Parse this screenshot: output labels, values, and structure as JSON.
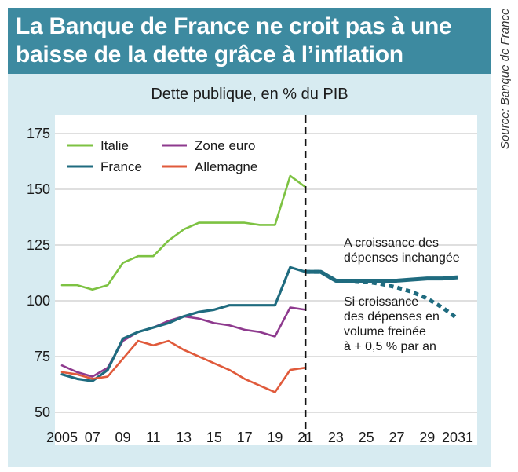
{
  "title_line1": "La Banque de France ne croit pas à une",
  "title_line2": "baisse de la dette grâce à l’inflation",
  "source": "Source: Banque de France",
  "colors": {
    "title_bg": "#3d8aa0",
    "frame_bg": "#d7ebf1",
    "italie": "#7dc242",
    "zone_euro": "#8e3a8e",
    "france": "#1f6b7f",
    "allemagne": "#e05a3b"
  },
  "chart_data": {
    "type": "line",
    "title": "Dette publique, en % du PIB",
    "xlabel": "",
    "ylabel": "",
    "xlim": [
      2005,
      2031
    ],
    "ylim": [
      50,
      175
    ],
    "yticks": [
      50,
      75,
      100,
      125,
      150,
      175
    ],
    "ytick_labels": [
      "50",
      "75",
      "100",
      "125",
      "150",
      "175"
    ],
    "xticks": [
      2005,
      2007,
      2009,
      2011,
      2013,
      2015,
      2017,
      2019,
      2021,
      2023,
      2025,
      2027,
      2029,
      2031
    ],
    "xtick_labels": [
      "2005",
      "07",
      "09",
      "11",
      "13",
      "15",
      "17",
      "19",
      "21",
      "23",
      "25",
      "27",
      "29",
      "2031"
    ],
    "grid": "horizontal",
    "legend": "top-left",
    "forecast_start": 2021,
    "series": [
      {
        "name": "Italie",
        "x": [
          2005,
          2006,
          2007,
          2008,
          2009,
          2010,
          2011,
          2012,
          2013,
          2014,
          2015,
          2016,
          2017,
          2018,
          2019,
          2020,
          2021
        ],
        "y": [
          107,
          107,
          105,
          107,
          117,
          120,
          120,
          127,
          132,
          135,
          135,
          135,
          135,
          134,
          134,
          156,
          151
        ]
      },
      {
        "name": "Zone euro",
        "x": [
          2005,
          2006,
          2007,
          2008,
          2009,
          2010,
          2011,
          2012,
          2013,
          2014,
          2015,
          2016,
          2017,
          2018,
          2019,
          2020,
          2021
        ],
        "y": [
          71,
          68,
          66,
          70,
          82,
          86,
          88,
          91,
          93,
          92,
          90,
          89,
          87,
          86,
          84,
          97,
          96
        ]
      },
      {
        "name": "France",
        "x": [
          2005,
          2006,
          2007,
          2008,
          2009,
          2010,
          2011,
          2012,
          2013,
          2014,
          2015,
          2016,
          2017,
          2018,
          2019,
          2020,
          2021
        ],
        "y": [
          67,
          65,
          64,
          69,
          83,
          86,
          88,
          90,
          93,
          95,
          96,
          98,
          98,
          98,
          98,
          115,
          113
        ]
      },
      {
        "name": "Allemagne",
        "x": [
          2005,
          2006,
          2007,
          2008,
          2009,
          2010,
          2011,
          2012,
          2013,
          2014,
          2015,
          2016,
          2017,
          2018,
          2019,
          2020,
          2021
        ],
        "y": [
          68,
          67,
          65,
          66,
          74,
          82,
          80,
          82,
          78,
          75,
          72,
          69,
          65,
          62,
          59,
          69,
          70
        ]
      }
    ],
    "projections": [
      {
        "label": "A croissance des dépenses inchangée",
        "label_lines": [
          "A croissance des",
          "dépenses inchangée"
        ],
        "style": "solid",
        "x": [
          2021,
          2022,
          2023,
          2024,
          2025,
          2026,
          2027,
          2028,
          2029,
          2030,
          2031
        ],
        "y": [
          113,
          113,
          109,
          109,
          109,
          109,
          109,
          109.5,
          110,
          110,
          110.5
        ]
      },
      {
        "label": "Si croissance des dépenses en volume freinée à + 0,5 % par an",
        "label_lines": [
          "Si croissance",
          "des dépenses en",
          "volume freinée",
          "à + 0,5 % par an"
        ],
        "style": "dotted",
        "x": [
          2021,
          2022,
          2023,
          2024,
          2025,
          2026,
          2027,
          2028,
          2029,
          2030,
          2031
        ],
        "y": [
          113,
          113,
          109,
          109,
          108.5,
          107.5,
          106,
          104,
          101,
          97,
          92
        ]
      }
    ]
  }
}
